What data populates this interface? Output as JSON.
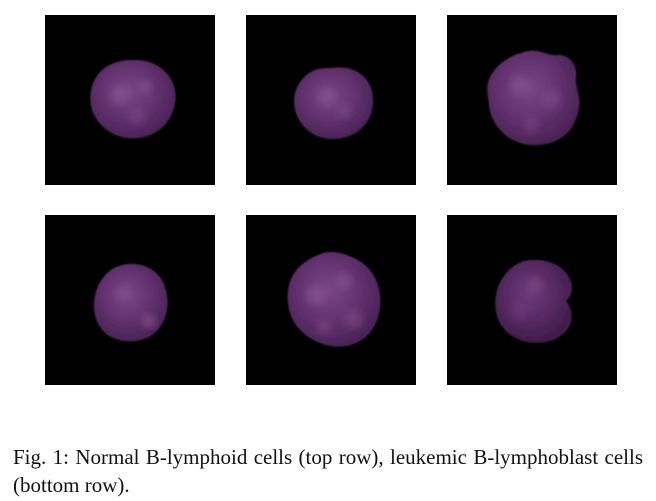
{
  "figure": {
    "caption": "Fig. 1: Normal B-lymphoid cells (top row), leukemic B-lymphoblast cells (bottom row).",
    "panel_background": "#000000",
    "cell_color": "#5c2d66",
    "rows": [
      {
        "cells": [
          {
            "icon": "normal-b-lymphoid-cell"
          },
          {
            "icon": "normal-b-lymphoid-cell"
          },
          {
            "icon": "normal-b-lymphoid-cell"
          }
        ]
      },
      {
        "cells": [
          {
            "icon": "leukemic-b-lymphoblast-cell"
          },
          {
            "icon": "leukemic-b-lymphoblast-cell"
          },
          {
            "icon": "leukemic-b-lymphoblast-cell"
          }
        ]
      }
    ]
  }
}
